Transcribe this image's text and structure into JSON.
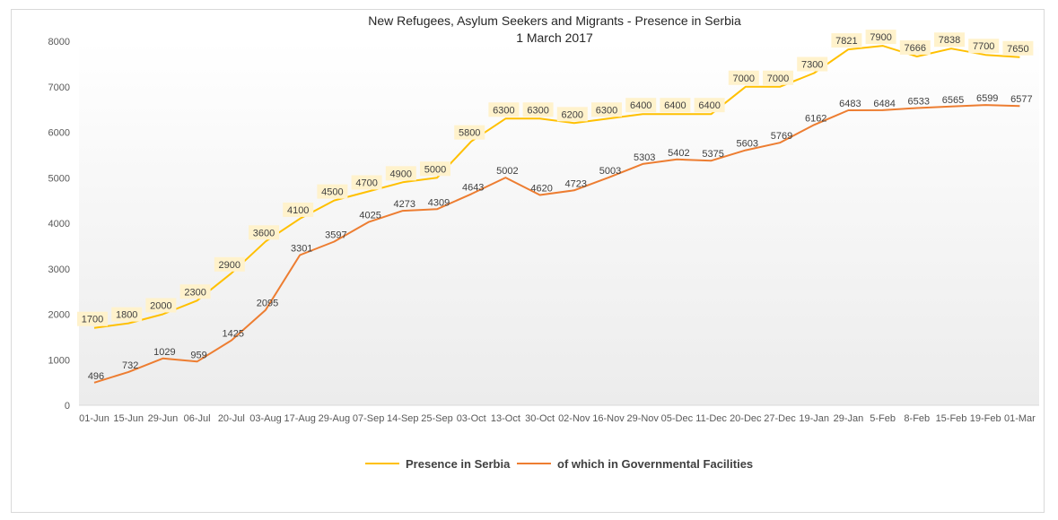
{
  "chart_data": {
    "type": "line",
    "title": "New Refugees, Asylum Seekers and Migrants - Presence in Serbia",
    "subtitle": "1 March 2017",
    "categories": [
      "01-Jun",
      "15-Jun",
      "29-Jun",
      "06-Jul",
      "20-Jul",
      "03-Aug",
      "17-Aug",
      "29-Aug",
      "07-Sep",
      "14-Sep",
      "25-Sep",
      "03-Oct",
      "13-Oct",
      "30-Oct",
      "02-Nov",
      "16-Nov",
      "29-Nov",
      "05-Dec",
      "11-Dec",
      "20-Dec",
      "27-Dec",
      "19-Jan",
      "29-Jan",
      "5-Feb",
      "8-Feb",
      "15-Feb",
      "19-Feb",
      "01-Mar"
    ],
    "ylim": [
      0,
      8000
    ],
    "yticks": [
      0,
      1000,
      2000,
      3000,
      4000,
      5000,
      6000,
      7000,
      8000
    ],
    "grid": false,
    "legend_position": "bottom",
    "series": [
      {
        "name": "Presence in Serbia",
        "color": "#FFC000",
        "values": [
          1700,
          1800,
          2000,
          2300,
          2900,
          3600,
          4100,
          4500,
          4700,
          4900,
          5000,
          5800,
          6300,
          6300,
          6200,
          6300,
          6400,
          6400,
          6400,
          7000,
          7000,
          7300,
          7821,
          7900,
          7666,
          7838,
          7700,
          7650
        ],
        "labels": [
          "1700",
          "1800",
          "2000",
          "2300",
          "2900",
          "3600",
          "4100",
          "4500",
          "4700",
          "4900",
          "5000",
          "5800",
          "6300",
          "6300",
          "6200",
          "6300",
          "6400",
          "6400",
          "6400",
          "7000",
          "7000",
          "7300",
          "7821",
          "7900",
          "7666",
          "7838",
          "7700",
          "7650"
        ]
      },
      {
        "name": "of which in Governmental Facilities",
        "color": "#ED7D31",
        "values": [
          496,
          732,
          1029,
          959,
          1425,
          2095,
          3301,
          3597,
          4025,
          4273,
          4309,
          4643,
          5002,
          4620,
          4723,
          5003,
          5303,
          5402,
          5375,
          5603,
          5769,
          6162,
          6483,
          6484,
          6533,
          6565,
          6599,
          6577
        ],
        "labels": [
          "496",
          "732",
          "1029",
          "959",
          "1425",
          "2095",
          "3301",
          "3597",
          "4025",
          "4273",
          "4309",
          "4643",
          "5002",
          "4620",
          "4723",
          "5003",
          "5303",
          "5402",
          "5375",
          "5603",
          "5769",
          "6162",
          "6483",
          "6484",
          "6533",
          "6565",
          "6599",
          "6577"
        ]
      }
    ]
  }
}
